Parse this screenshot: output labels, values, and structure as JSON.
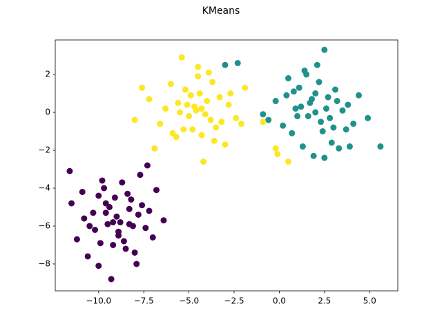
{
  "chart_data": {
    "type": "scatter",
    "title": "KMeans",
    "xlim": [
      -12.4,
      6.56
    ],
    "ylim": [
      -9.42,
      3.82
    ],
    "xticks": [
      {
        "value": -10,
        "label": "−10.0"
      },
      {
        "value": -7.5,
        "label": "−7.5"
      },
      {
        "value": -5,
        "label": "−5.0"
      },
      {
        "value": -2.5,
        "label": "−2.5"
      },
      {
        "value": 0,
        "label": "0.0"
      },
      2.5,
      {
        "value": 5,
        "label": "5.0"
      }
    ],
    "yticks": [
      {
        "value": -8,
        "label": "−8"
      },
      {
        "value": -6,
        "label": "−6"
      },
      {
        "value": -4,
        "label": "−4"
      },
      {
        "value": -2,
        "label": "−2"
      },
      0,
      2
    ],
    "series": [
      {
        "color": "#440154",
        "x": [
          -11.5,
          -11.6,
          -11.2,
          -10.9,
          -10.6,
          -10.3,
          -10.0,
          -9.8,
          -9.5,
          -9.3,
          -9.1,
          -8.9,
          -8.7,
          -8.5,
          -8.3,
          -8.1,
          -7.9,
          -7.6,
          -7.3,
          -7.0,
          -6.8,
          -6.4,
          -10.8,
          -10.2,
          -9.6,
          -9.0,
          -8.6,
          -8.2,
          -7.8,
          -7.4,
          -9.9,
          -9.4,
          -8.8,
          -8.4,
          -9.7,
          -9.2,
          -8.0,
          -7.7,
          -10.5,
          -9.6,
          -8.9,
          -8.3,
          -7.2,
          -10.0,
          -9.2
        ],
        "values": [
          -4.8,
          -3.1,
          -6.7,
          -4.2,
          -7.6,
          -5.3,
          -8.1,
          -3.6,
          -5.9,
          -8.8,
          -4.5,
          -6.3,
          -3.7,
          -7.2,
          -5.1,
          -6.0,
          -8.0,
          -4.9,
          -2.8,
          -6.6,
          -4.1,
          -5.7,
          -5.6,
          -6.2,
          -4.8,
          -5.5,
          -6.8,
          -4.6,
          -5.4,
          -6.1,
          -6.9,
          -5.0,
          -5.8,
          -4.3,
          -4.0,
          -7.0,
          -7.4,
          -3.3,
          -6.0,
          -5.3,
          -6.5,
          -5.9,
          -5.2,
          -4.4,
          -5.8
        ]
      },
      {
        "color": "#21918c",
        "x": [
          -0.9,
          -0.6,
          -0.2,
          0.2,
          0.5,
          0.7,
          0.9,
          1.1,
          1.3,
          1.5,
          1.7,
          1.9,
          2.1,
          2.3,
          2.5,
          2.7,
          2.9,
          3.1,
          3.3,
          3.5,
          3.7,
          3.9,
          4.1,
          4.4,
          4.9,
          5.6,
          -3.0,
          -2.3,
          0.4,
          1.2,
          1.6,
          2.0,
          2.4,
          2.8,
          3.2,
          1.0,
          1.8,
          2.2,
          2.6,
          3.0,
          1.4,
          2.5,
          0.8,
          3.8,
          2.0
        ],
        "values": [
          -0.1,
          -0.4,
          0.6,
          -0.7,
          1.8,
          -1.1,
          0.2,
          1.3,
          -1.8,
          2.0,
          0.5,
          -2.3,
          2.5,
          -0.5,
          3.3,
          0.8,
          -1.6,
          1.2,
          -1.9,
          0.1,
          -0.9,
          -1.8,
          -0.6,
          0.9,
          -0.3,
          -1.8,
          2.5,
          2.6,
          0.9,
          0.3,
          -0.2,
          1.0,
          -1.0,
          -0.3,
          0.6,
          -0.2,
          0.7,
          1.6,
          0.2,
          -0.8,
          2.2,
          -2.4,
          1.1,
          0.4,
          0.0
        ]
      },
      {
        "color": "#fde725",
        "x": [
          -8.0,
          -7.6,
          -7.2,
          -6.9,
          -6.6,
          -6.3,
          -6.0,
          -5.7,
          -5.4,
          -5.1,
          -4.8,
          -4.5,
          -4.2,
          -3.9,
          -3.6,
          -3.3,
          -3.0,
          -2.7,
          -2.4,
          -2.1,
          -1.9,
          -5.6,
          -4.6,
          -3.8,
          -5.0,
          -4.4,
          -4.0,
          -3.5,
          -5.3,
          -4.9,
          -4.3,
          -3.7,
          -4.7,
          -4.1,
          -5.5,
          -3.2,
          -2.8,
          -4.5,
          -0.9,
          -0.2,
          0.5,
          -0.1,
          -5.9,
          -5.2,
          -4.3
        ],
        "values": [
          -0.4,
          1.3,
          0.7,
          -1.9,
          -0.6,
          0.2,
          1.5,
          -1.3,
          2.9,
          0.4,
          -0.9,
          1.9,
          -2.6,
          2.1,
          -1.5,
          0.8,
          -1.7,
          1.0,
          -0.3,
          -0.6,
          1.3,
          0.5,
          0.1,
          -0.4,
          -0.2,
          1.0,
          0.6,
          -0.8,
          -0.9,
          0.9,
          -1.2,
          1.6,
          0.3,
          -0.1,
          0.0,
          -0.5,
          0.4,
          2.4,
          -0.5,
          -1.9,
          -2.6,
          -2.2,
          -1.1,
          1.2,
          0.2
        ]
      }
    ]
  }
}
